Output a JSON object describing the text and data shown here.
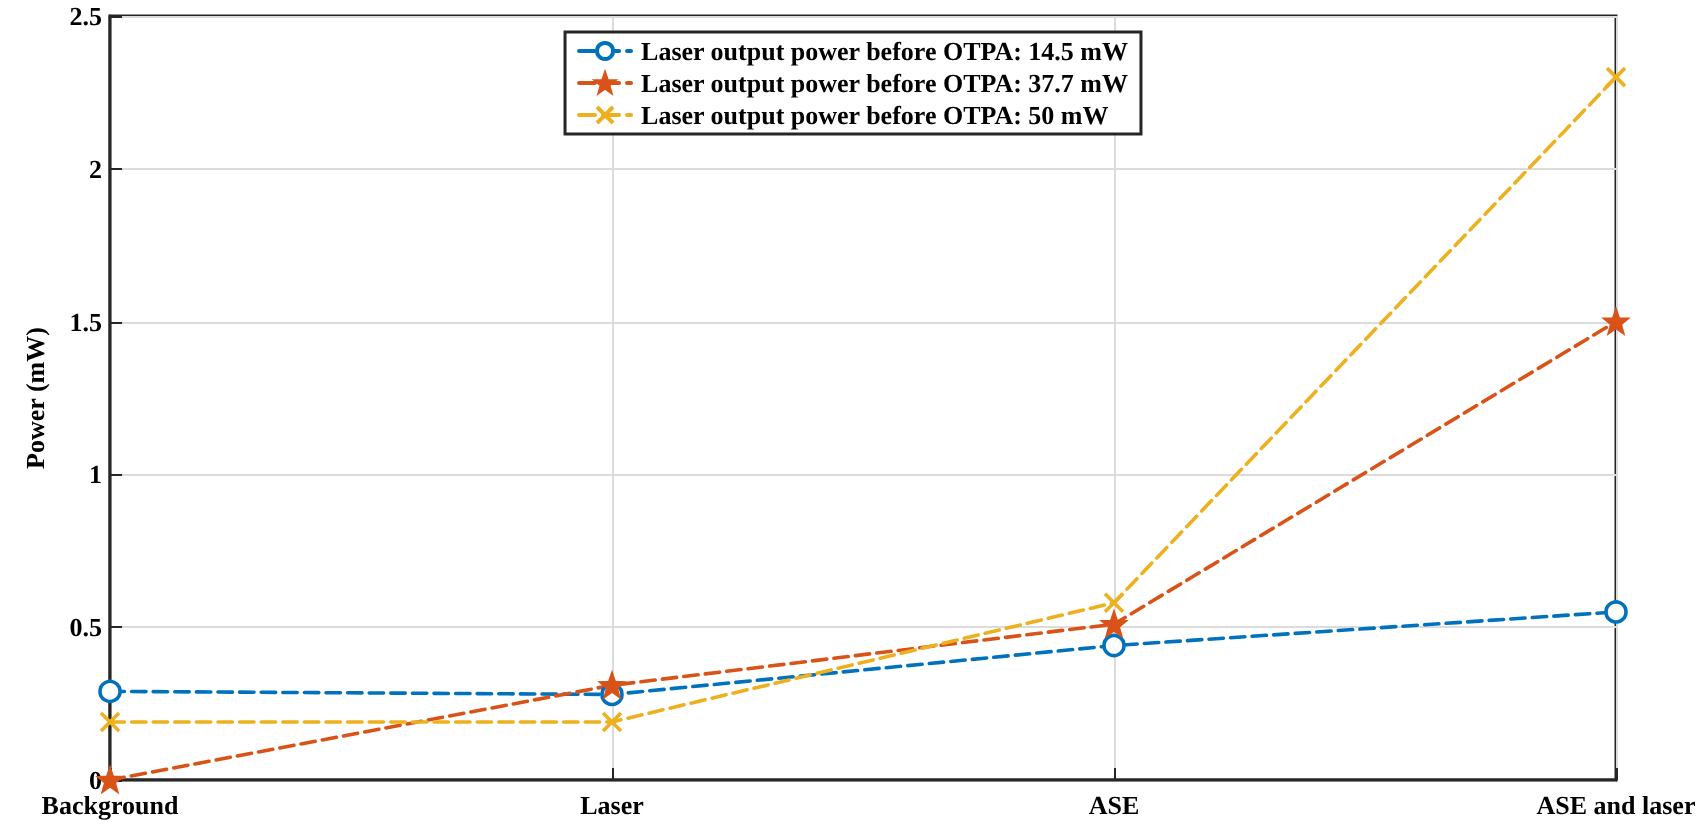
{
  "chart_data": {
    "type": "line",
    "ylabel": "Power (mW)",
    "categories": [
      "Background",
      "Laser",
      "ASE",
      "ASE and laser"
    ],
    "series": [
      {
        "name": "Laser output power before OTPA: 14.5 mW",
        "color": "#0072bd",
        "marker": "circle",
        "values": [
          0.29,
          0.28,
          0.44,
          0.55
        ]
      },
      {
        "name": "Laser output power before OTPA: 37.7 mW",
        "color": "#d95319",
        "marker": "star",
        "values": [
          0.0,
          0.31,
          0.51,
          1.5
        ]
      },
      {
        "name": "Laser output power before OTPA: 50 mW",
        "color": "#edb120",
        "marker": "cross",
        "values": [
          0.19,
          0.19,
          0.58,
          2.3
        ]
      }
    ],
    "ylim": [
      0,
      2.5
    ],
    "yticks": [
      0,
      0.5,
      1,
      1.5,
      2,
      2.5
    ],
    "grid": true,
    "legend": "top",
    "line_style": "dashed"
  }
}
